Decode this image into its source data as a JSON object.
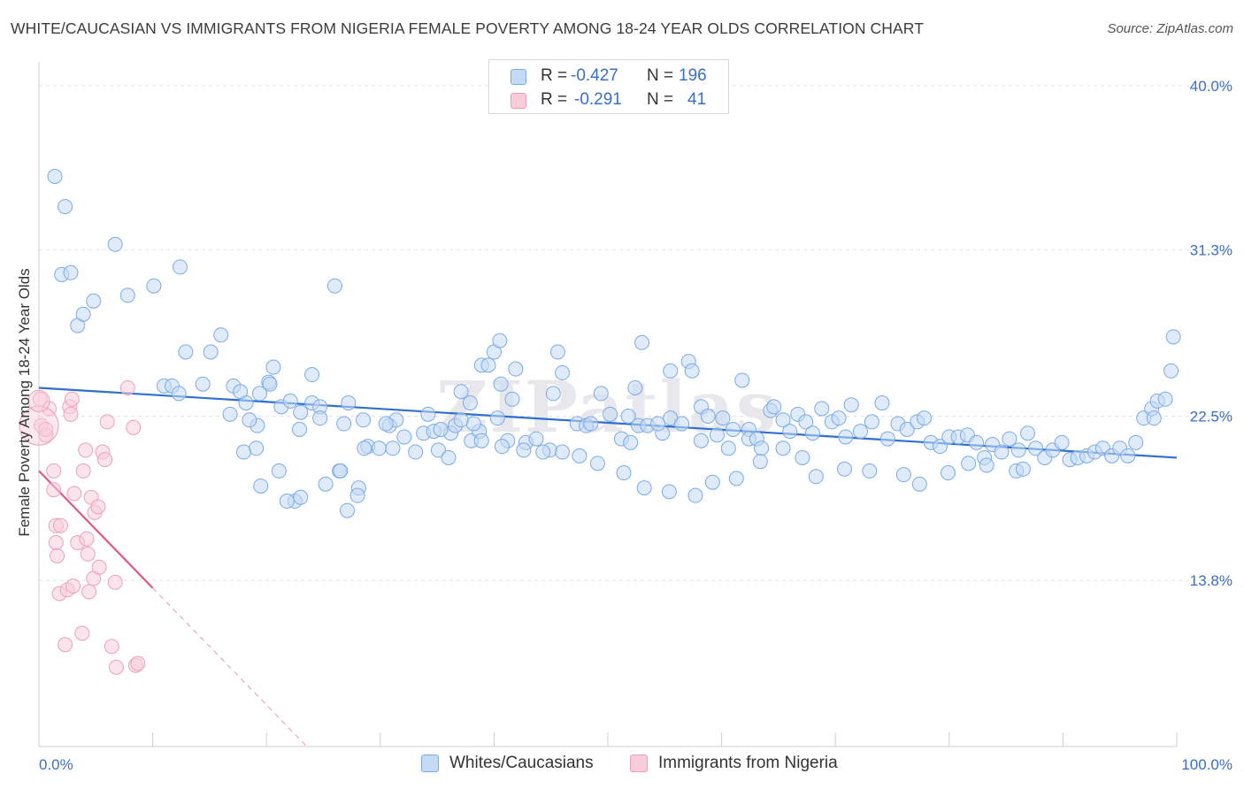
{
  "chart_data": {
    "type": "scatter",
    "title": "WHITE/CAUCASIAN VS IMMIGRANTS FROM NIGERIA FEMALE POVERTY AMONG 18-24 YEAR OLDS CORRELATION CHART",
    "source": "Source: ZipAtlas.com",
    "watermark": "ZIPatlas",
    "ylabel": "Female Poverty Among 18-24 Year Olds",
    "xlim": [
      0,
      100
    ],
    "ylim": [
      5.0,
      40.0
    ],
    "x_tick_labels": [
      "0.0%",
      "100.0%"
    ],
    "y_ticks": [
      13.8,
      22.5,
      31.3,
      40.0
    ],
    "y_tick_labels": [
      "13.8%",
      "22.5%",
      "31.3%",
      "40.0%"
    ],
    "legend": {
      "rows": [
        {
          "r_label": "R =",
          "r_value": "-0.427",
          "n_label": "N =",
          "n_value": "196"
        },
        {
          "r_label": "R =",
          "r_value": "-0.291",
          "n_label": "N =",
          "n_value": "41"
        }
      ]
    },
    "series": [
      {
        "name": "Whites/Caucasians",
        "color": "#7aaae8",
        "fill": "#c5dbf5",
        "line_color": "#2e6fd0",
        "trend": {
          "x0": 0,
          "y0": 24.0,
          "x1": 100,
          "y1": 20.3
        },
        "points": [
          [
            1.4,
            35.2
          ],
          [
            2.3,
            33.6
          ],
          [
            2.0,
            30.0
          ],
          [
            2.8,
            30.1
          ],
          [
            3.4,
            27.3
          ],
          [
            3.9,
            27.9
          ],
          [
            4.8,
            28.6
          ],
          [
            6.7,
            31.6
          ],
          [
            7.8,
            28.9
          ],
          [
            10.1,
            29.4
          ],
          [
            12.4,
            30.4
          ],
          [
            11.0,
            24.1
          ],
          [
            11.7,
            24.1
          ],
          [
            12.3,
            23.7
          ],
          [
            12.9,
            25.9
          ],
          [
            14.4,
            24.2
          ],
          [
            15.1,
            25.9
          ],
          [
            16.0,
            26.8
          ],
          [
            17.1,
            24.1
          ],
          [
            16.8,
            22.6
          ],
          [
            19.4,
            23.7
          ],
          [
            19.1,
            20.8
          ],
          [
            20.2,
            24.3
          ],
          [
            18.2,
            23.2
          ],
          [
            18.0,
            20.6
          ],
          [
            19.5,
            18.8
          ],
          [
            20.6,
            25.1
          ],
          [
            21.3,
            23.0
          ],
          [
            23.0,
            22.7
          ],
          [
            24.0,
            23.2
          ],
          [
            24.0,
            24.7
          ],
          [
            24.7,
            23.0
          ],
          [
            21.1,
            19.6
          ],
          [
            22.5,
            18.0
          ],
          [
            21.8,
            18.0
          ],
          [
            23.0,
            18.2
          ],
          [
            25.2,
            18.9
          ],
          [
            26.4,
            19.6
          ],
          [
            27.2,
            23.2
          ],
          [
            26.0,
            29.4
          ],
          [
            26.5,
            19.6
          ],
          [
            27.1,
            17.5
          ],
          [
            28.1,
            18.7
          ],
          [
            28.0,
            18.3
          ],
          [
            28.9,
            20.9
          ],
          [
            29.9,
            20.8
          ],
          [
            28.6,
            20.8
          ],
          [
            30.8,
            22.0
          ],
          [
            31.1,
            20.8
          ],
          [
            31.4,
            22.3
          ],
          [
            33.1,
            20.6
          ],
          [
            33.8,
            21.6
          ],
          [
            34.7,
            21.7
          ],
          [
            35.1,
            20.7
          ],
          [
            36.0,
            20.3
          ],
          [
            36.2,
            21.6
          ],
          [
            36.6,
            22.0
          ],
          [
            37.1,
            23.8
          ],
          [
            37.9,
            23.2
          ],
          [
            38.0,
            21.2
          ],
          [
            38.7,
            21.7
          ],
          [
            38.2,
            22.1
          ],
          [
            38.9,
            25.2
          ],
          [
            39.5,
            25.2
          ],
          [
            40.0,
            25.9
          ],
          [
            40.3,
            22.4
          ],
          [
            40.6,
            24.2
          ],
          [
            40.5,
            26.5
          ],
          [
            41.2,
            21.2
          ],
          [
            41.9,
            25.0
          ],
          [
            41.6,
            23.4
          ],
          [
            42.8,
            21.1
          ],
          [
            43.7,
            21.3
          ],
          [
            44.9,
            20.7
          ],
          [
            45.2,
            23.7
          ],
          [
            45.6,
            25.9
          ],
          [
            46.0,
            24.8
          ],
          [
            47.3,
            22.1
          ],
          [
            48.1,
            22.0
          ],
          [
            48.5,
            22.1
          ],
          [
            49.4,
            23.7
          ],
          [
            50.2,
            22.6
          ],
          [
            51.2,
            21.3
          ],
          [
            51.8,
            22.5
          ],
          [
            52.0,
            21.1
          ],
          [
            52.4,
            24.0
          ],
          [
            52.7,
            22.0
          ],
          [
            53.0,
            26.4
          ],
          [
            53.5,
            22.0
          ],
          [
            54.8,
            21.6
          ],
          [
            54.4,
            22.1
          ],
          [
            55.5,
            22.4
          ],
          [
            55.5,
            24.9
          ],
          [
            56.5,
            22.1
          ],
          [
            57.1,
            25.4
          ],
          [
            57.4,
            24.9
          ],
          [
            58.2,
            21.2
          ],
          [
            58.2,
            23.0
          ],
          [
            58.8,
            22.5
          ],
          [
            59.6,
            21.5
          ],
          [
            60.1,
            22.4
          ],
          [
            60.6,
            20.8
          ],
          [
            61.0,
            21.8
          ],
          [
            61.8,
            24.4
          ],
          [
            62.4,
            21.8
          ],
          [
            62.4,
            21.3
          ],
          [
            63.1,
            21.3
          ],
          [
            63.5,
            20.8
          ],
          [
            64.3,
            22.8
          ],
          [
            64.6,
            23.0
          ],
          [
            65.4,
            22.3
          ],
          [
            66.0,
            21.7
          ],
          [
            66.7,
            22.6
          ],
          [
            67.4,
            22.2
          ],
          [
            68.0,
            21.6
          ],
          [
            68.8,
            22.9
          ],
          [
            69.7,
            22.2
          ],
          [
            70.3,
            22.4
          ],
          [
            70.9,
            21.4
          ],
          [
            71.4,
            23.1
          ],
          [
            72.2,
            21.7
          ],
          [
            73.2,
            22.2
          ],
          [
            74.1,
            23.2
          ],
          [
            74.6,
            21.3
          ],
          [
            75.5,
            22.1
          ],
          [
            76.3,
            21.8
          ],
          [
            77.2,
            22.2
          ],
          [
            77.8,
            22.4
          ],
          [
            78.4,
            21.1
          ],
          [
            79.2,
            20.9
          ],
          [
            80.0,
            21.4
          ],
          [
            80.8,
            21.4
          ],
          [
            81.6,
            21.5
          ],
          [
            82.4,
            21.1
          ],
          [
            83.1,
            20.3
          ],
          [
            83.8,
            21.0
          ],
          [
            84.6,
            20.6
          ],
          [
            85.3,
            21.3
          ],
          [
            86.1,
            20.7
          ],
          [
            86.9,
            21.6
          ],
          [
            87.6,
            20.8
          ],
          [
            88.4,
            20.3
          ],
          [
            89.1,
            20.7
          ],
          [
            89.9,
            21.1
          ],
          [
            90.6,
            20.2
          ],
          [
            91.3,
            20.3
          ],
          [
            92.1,
            20.4
          ],
          [
            92.8,
            20.6
          ],
          [
            93.5,
            20.8
          ],
          [
            94.3,
            20.4
          ],
          [
            95.0,
            20.8
          ],
          [
            95.7,
            20.4
          ],
          [
            96.4,
            21.1
          ],
          [
            97.1,
            22.4
          ],
          [
            97.8,
            22.9
          ],
          [
            98.3,
            23.3
          ],
          [
            99.0,
            23.4
          ],
          [
            99.5,
            24.9
          ],
          [
            99.7,
            26.7
          ],
          [
            98.0,
            22.4
          ],
          [
            85.9,
            19.6
          ],
          [
            86.5,
            19.7
          ],
          [
            83.3,
            19.9
          ],
          [
            81.7,
            20.0
          ],
          [
            79.9,
            19.5
          ],
          [
            77.4,
            18.9
          ],
          [
            76.0,
            19.4
          ],
          [
            73.0,
            19.6
          ],
          [
            70.8,
            19.7
          ],
          [
            68.3,
            19.3
          ],
          [
            67.1,
            20.3
          ],
          [
            65.4,
            20.8
          ],
          [
            63.4,
            20.1
          ],
          [
            61.3,
            19.2
          ],
          [
            59.2,
            19.0
          ],
          [
            57.7,
            18.3
          ],
          [
            55.4,
            18.5
          ],
          [
            53.2,
            18.7
          ],
          [
            51.4,
            19.5
          ],
          [
            49.1,
            20.0
          ],
          [
            47.5,
            20.4
          ],
          [
            46.0,
            20.6
          ],
          [
            44.3,
            20.6
          ],
          [
            42.6,
            20.7
          ],
          [
            40.7,
            20.9
          ],
          [
            38.9,
            21.2
          ],
          [
            37.1,
            22.3
          ],
          [
            35.3,
            21.8
          ],
          [
            34.2,
            22.6
          ],
          [
            32.1,
            21.4
          ],
          [
            30.5,
            22.1
          ],
          [
            28.5,
            22.3
          ],
          [
            26.8,
            22.1
          ],
          [
            24.7,
            22.4
          ],
          [
            22.9,
            21.8
          ],
          [
            22.1,
            23.3
          ],
          [
            20.3,
            24.2
          ],
          [
            19.2,
            22.0
          ],
          [
            18.5,
            22.3
          ],
          [
            17.7,
            23.8
          ]
        ]
      },
      {
        "name": "Immigrants from Nigeria",
        "color": "#ee9fba",
        "fill": "#f8cdd9",
        "line_color": "#e0558a",
        "trend": {
          "x0": 0,
          "y0": 19.6,
          "x1": 10,
          "y1": 13.4
        },
        "points": [
          [
            0.1,
            23.4
          ],
          [
            0.2,
            22.0
          ],
          [
            0.6,
            21.5
          ],
          [
            0.6,
            21.8
          ],
          [
            0.9,
            22.9
          ],
          [
            1.3,
            19.6
          ],
          [
            1.3,
            18.6
          ],
          [
            1.5,
            16.7
          ],
          [
            1.5,
            15.8
          ],
          [
            1.6,
            15.1
          ],
          [
            1.8,
            13.1
          ],
          [
            1.9,
            16.7
          ],
          [
            2.3,
            10.4
          ],
          [
            2.5,
            13.3
          ],
          [
            2.7,
            23.0
          ],
          [
            2.8,
            22.6
          ],
          [
            2.9,
            23.4
          ],
          [
            3.0,
            13.5
          ],
          [
            3.1,
            18.4
          ],
          [
            3.4,
            15.8
          ],
          [
            3.8,
            11.0
          ],
          [
            3.9,
            19.6
          ],
          [
            4.2,
            16.0
          ],
          [
            4.1,
            20.7
          ],
          [
            4.3,
            15.2
          ],
          [
            4.4,
            13.2
          ],
          [
            4.6,
            18.2
          ],
          [
            4.8,
            13.9
          ],
          [
            4.9,
            17.4
          ],
          [
            5.2,
            17.7
          ],
          [
            5.3,
            14.5
          ],
          [
            5.6,
            20.6
          ],
          [
            5.8,
            20.2
          ],
          [
            6.0,
            22.2
          ],
          [
            6.4,
            10.3
          ],
          [
            6.7,
            13.7
          ],
          [
            6.8,
            9.2
          ],
          [
            7.8,
            24.0
          ],
          [
            8.3,
            21.9
          ],
          [
            8.5,
            9.3
          ],
          [
            8.7,
            9.4
          ]
        ]
      }
    ]
  }
}
